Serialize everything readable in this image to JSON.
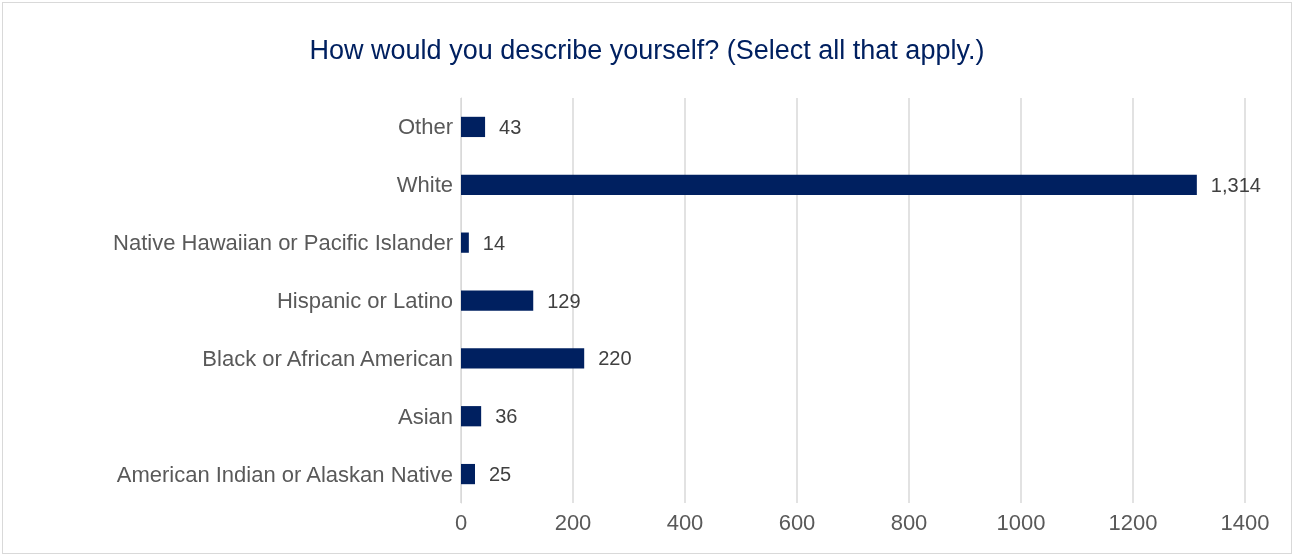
{
  "chart_data": {
    "type": "bar",
    "orientation": "horizontal",
    "title": "How would you describe yourself? (Select all that apply.)",
    "categories": [
      "Other",
      "White",
      "Native Hawaiian or Pacific Islander",
      "Hispanic or Latino",
      "Black or African American",
      "Asian",
      "American Indian or Alaskan Native"
    ],
    "values": [
      43,
      1314,
      14,
      129,
      220,
      36,
      25
    ],
    "value_labels": [
      "43",
      "1,314",
      "14",
      "129",
      "220",
      "36",
      "25"
    ],
    "color": "#002060",
    "xlim": [
      0,
      1400
    ],
    "xticks": [
      0,
      200,
      400,
      600,
      800,
      1000,
      1200,
      1400
    ],
    "grid": "x"
  }
}
